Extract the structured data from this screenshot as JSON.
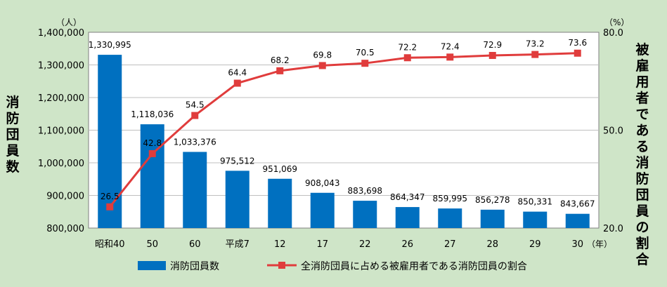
{
  "chart_data": {
    "type": "bar+line",
    "categories": [
      "昭和40",
      "50",
      "60",
      "平成7",
      "12",
      "17",
      "22",
      "26",
      "27",
      "28",
      "29",
      "30"
    ],
    "series": [
      {
        "name": "消防団員数",
        "type": "bar",
        "axis": "left",
        "color": "#0070c0",
        "values": [
          1330995,
          1118036,
          1033376,
          975512,
          951069,
          908043,
          883698,
          864347,
          859995,
          856278,
          850331,
          843667
        ],
        "labels": [
          "1,330,995",
          "1,118,036",
          "1,033,376",
          "975,512",
          "951,069",
          "908,043",
          "883,698",
          "864,347",
          "859,995",
          "856,278",
          "850,331",
          "843,667"
        ]
      },
      {
        "name": "全消防団員に占める被雇用者である消防団員の割合",
        "type": "line",
        "axis": "right",
        "color": "#e03c3c",
        "values": [
          26.5,
          42.8,
          54.5,
          64.4,
          68.2,
          69.8,
          70.5,
          72.2,
          72.4,
          72.9,
          73.2,
          73.6
        ],
        "labels": [
          "26.5",
          "42.8",
          "54.5",
          "64.4",
          "68.2",
          "69.8",
          "70.5",
          "72.2",
          "72.4",
          "72.9",
          "73.2",
          "73.6"
        ]
      }
    ],
    "left_axis": {
      "label": "消防団員数",
      "unit": "（人）",
      "range": [
        800000,
        1400000
      ],
      "ticks": [
        800000,
        900000,
        1000000,
        1100000,
        1200000,
        1300000,
        1400000
      ],
      "tick_labels": [
        "800,000",
        "900,000",
        "1,000,000",
        "1,100,000",
        "1,200,000",
        "1,300,000",
        "1,400,000"
      ]
    },
    "right_axis": {
      "label": "被雇用者である消防団員の割合",
      "unit": "（%）",
      "range": [
        20,
        80
      ],
      "ticks": [
        20,
        50,
        80
      ],
      "tick_labels": [
        "20.0",
        "50.0",
        "80.0"
      ]
    },
    "x_unit": "（年）",
    "grid": true,
    "legend_position": "bottom"
  }
}
